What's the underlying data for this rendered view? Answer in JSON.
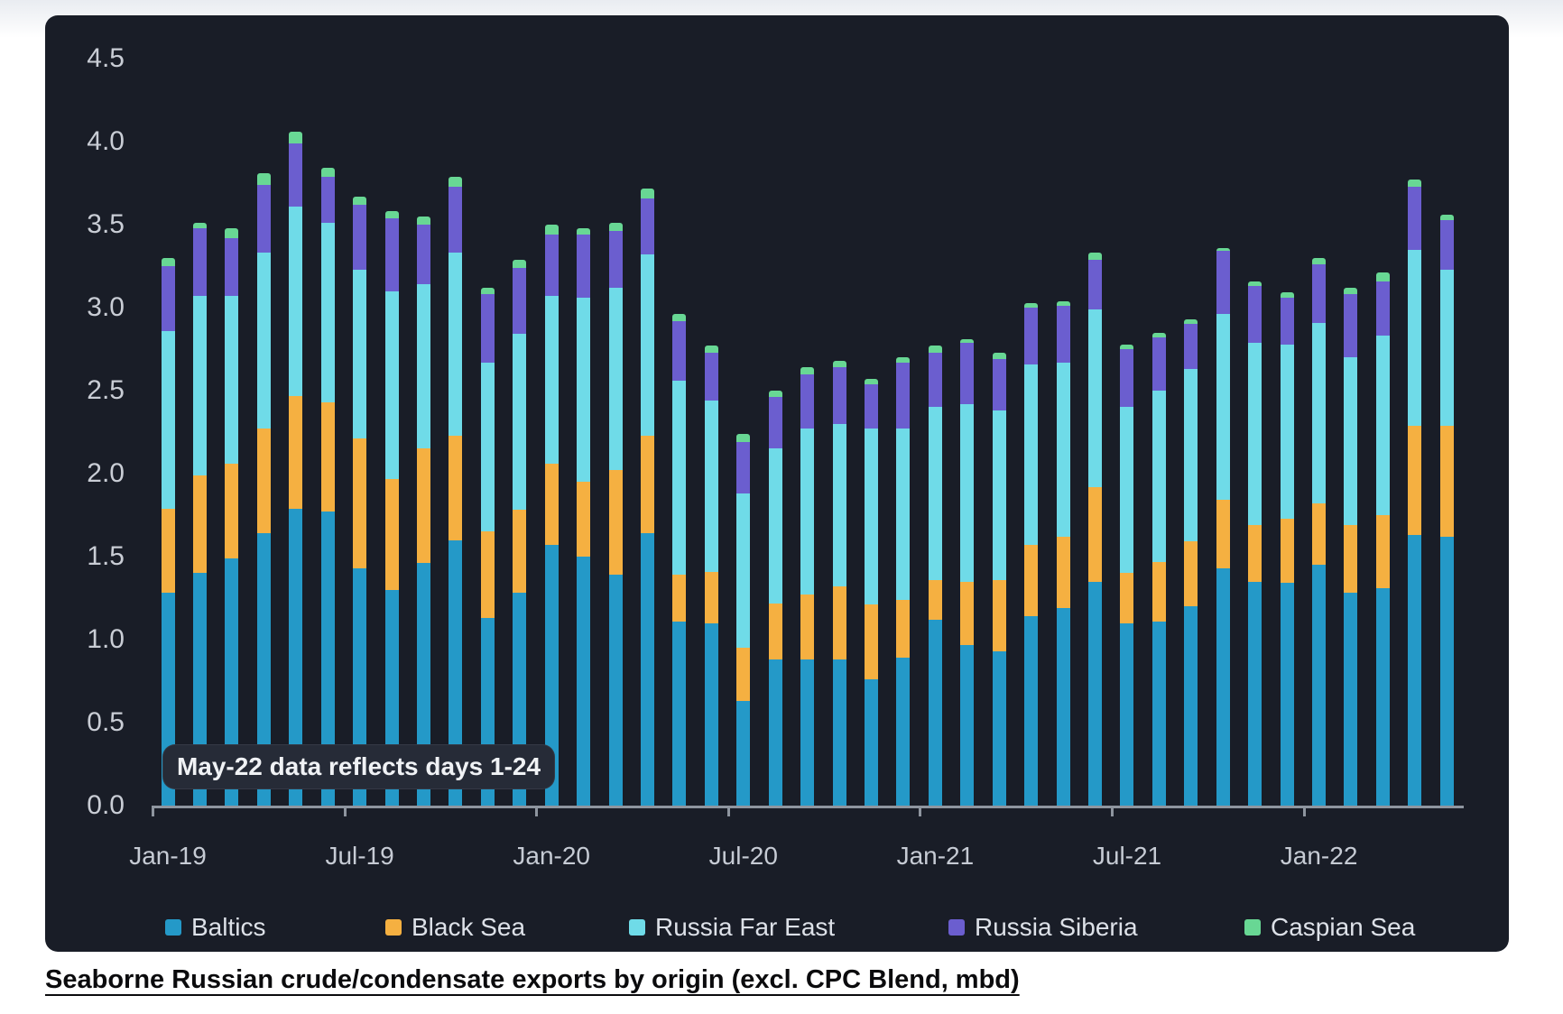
{
  "page": {
    "caption": "Seaborne Russian crude/condensate exports by origin (excl. CPC Blend, mbd)"
  },
  "colors": {
    "card_bg": "#191d27",
    "page_bg": "#ffffff",
    "axis_text": "#c6cbd4",
    "axis_line": "#8e959f",
    "legend_text": "#dde1e8",
    "tooltip_bg": "#262b37",
    "tooltip_text": "#f0f2f5",
    "caption_text": "#0b0b0d"
  },
  "chart_data": {
    "type": "bar",
    "stacked": true,
    "title": "",
    "xlabel": "",
    "ylabel": "",
    "ylim": [
      0,
      4.5
    ],
    "ytick_step": 0.5,
    "grid": false,
    "legend_position": "bottom",
    "annotation": "May-22 data reflects days 1-24",
    "visible_xticks": [
      "Jan-19",
      "Jul-19",
      "Jan-20",
      "Jul-20",
      "Jan-21",
      "Jul-21",
      "Jan-22"
    ],
    "categories": [
      "Jan-19",
      "Feb-19",
      "Mar-19",
      "Apr-19",
      "May-19",
      "Jun-19",
      "Jul-19",
      "Aug-19",
      "Sep-19",
      "Oct-19",
      "Nov-19",
      "Dec-19",
      "Jan-20",
      "Feb-20",
      "Mar-20",
      "Apr-20",
      "May-20",
      "Jun-20",
      "Jul-20",
      "Aug-20",
      "Sep-20",
      "Oct-20",
      "Nov-20",
      "Dec-20",
      "Jan-21",
      "Feb-21",
      "Mar-21",
      "Apr-21",
      "May-21",
      "Jun-21",
      "Jul-21",
      "Aug-21",
      "Sep-21",
      "Oct-21",
      "Nov-21",
      "Dec-21",
      "Jan-22",
      "Feb-22",
      "Mar-22",
      "Apr-22",
      "May-22"
    ],
    "series": [
      {
        "name": "Baltics",
        "color": "#2499c8",
        "values": [
          1.28,
          1.4,
          1.49,
          1.64,
          1.79,
          1.77,
          1.43,
          1.3,
          1.46,
          1.6,
          1.13,
          1.28,
          1.57,
          1.5,
          1.39,
          1.64,
          1.11,
          1.1,
          0.63,
          0.88,
          0.88,
          0.88,
          0.76,
          0.89,
          1.12,
          0.97,
          0.93,
          1.14,
          1.19,
          1.35,
          1.1,
          1.11,
          1.2,
          1.43,
          1.35,
          1.34,
          1.45,
          1.28,
          1.31,
          1.63,
          1.62
        ]
      },
      {
        "name": "Black Sea",
        "color": "#f5b041",
        "values": [
          0.51,
          0.59,
          0.57,
          0.63,
          0.68,
          0.66,
          0.78,
          0.67,
          0.69,
          0.63,
          0.52,
          0.5,
          0.49,
          0.45,
          0.63,
          0.59,
          0.28,
          0.31,
          0.32,
          0.34,
          0.39,
          0.44,
          0.45,
          0.35,
          0.24,
          0.38,
          0.43,
          0.43,
          0.43,
          0.57,
          0.3,
          0.36,
          0.39,
          0.41,
          0.34,
          0.39,
          0.37,
          0.41,
          0.44,
          0.66,
          0.67
        ]
      },
      {
        "name": "Russia Far East",
        "color": "#6fdbe8",
        "values": [
          1.07,
          1.08,
          1.01,
          1.06,
          1.14,
          1.08,
          1.02,
          1.13,
          0.99,
          1.1,
          1.02,
          1.06,
          1.01,
          1.11,
          1.1,
          1.09,
          1.17,
          1.03,
          0.93,
          0.93,
          1.0,
          0.98,
          1.06,
          1.03,
          1.04,
          1.07,
          1.02,
          1.09,
          1.05,
          1.07,
          1.0,
          1.03,
          1.04,
          1.12,
          1.1,
          1.05,
          1.09,
          1.01,
          1.08,
          1.06,
          0.94
        ]
      },
      {
        "name": "Russia Siberia",
        "color": "#6b5ecf",
        "values": [
          0.39,
          0.41,
          0.35,
          0.41,
          0.38,
          0.28,
          0.39,
          0.44,
          0.36,
          0.4,
          0.41,
          0.4,
          0.37,
          0.38,
          0.34,
          0.34,
          0.36,
          0.29,
          0.31,
          0.31,
          0.33,
          0.34,
          0.27,
          0.4,
          0.33,
          0.37,
          0.31,
          0.34,
          0.34,
          0.3,
          0.35,
          0.32,
          0.27,
          0.38,
          0.34,
          0.28,
          0.35,
          0.38,
          0.33,
          0.38,
          0.3
        ]
      },
      {
        "name": "Caspian Sea",
        "color": "#68d794",
        "values": [
          0.05,
          0.03,
          0.06,
          0.07,
          0.07,
          0.05,
          0.05,
          0.04,
          0.05,
          0.06,
          0.04,
          0.05,
          0.06,
          0.04,
          0.05,
          0.06,
          0.04,
          0.04,
          0.05,
          0.04,
          0.04,
          0.04,
          0.03,
          0.03,
          0.04,
          0.02,
          0.04,
          0.03,
          0.03,
          0.04,
          0.03,
          0.03,
          0.03,
          0.02,
          0.03,
          0.03,
          0.04,
          0.04,
          0.05,
          0.04,
          0.03
        ]
      }
    ]
  }
}
